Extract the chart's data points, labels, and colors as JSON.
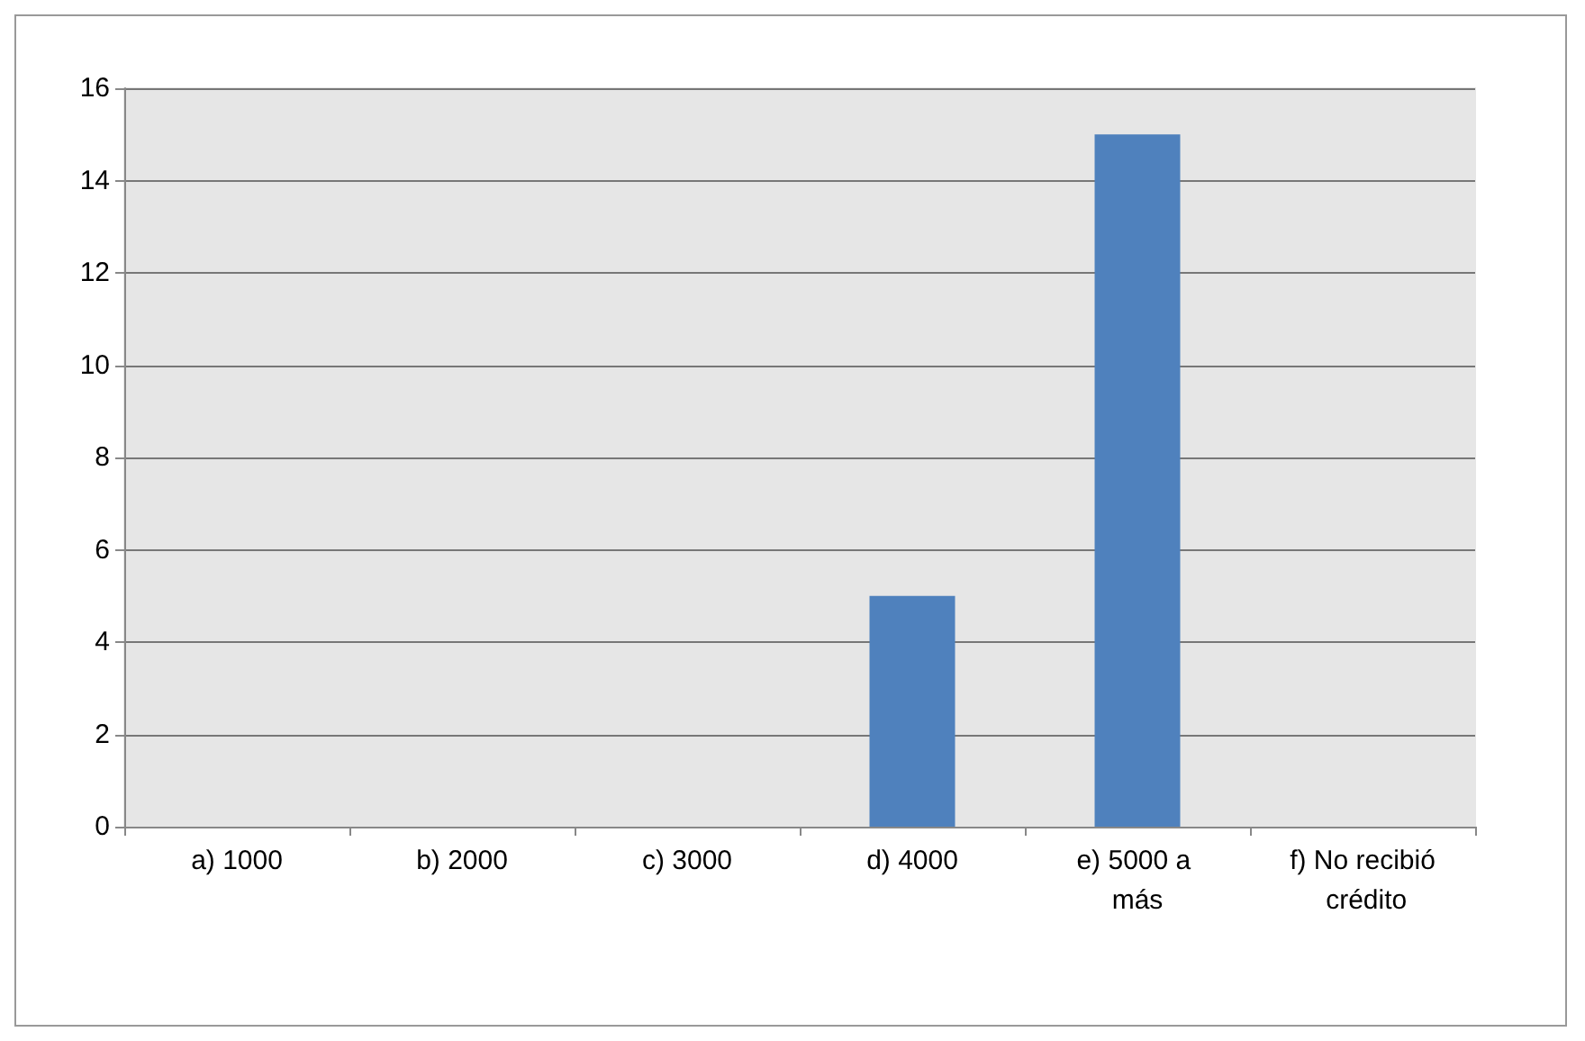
{
  "chart_data": {
    "type": "bar",
    "categories": [
      "a) 1000",
      "b) 2000",
      "c) 3000",
      "d) 4000",
      "e) 5000 a más",
      "f) No recibió crédito"
    ],
    "values": [
      0,
      0,
      0,
      5,
      15,
      0
    ],
    "color": "#4f81bd",
    "ylim": [
      0,
      16
    ],
    "yticks": [
      0,
      2,
      4,
      6,
      8,
      10,
      12,
      14,
      16
    ],
    "grid": "y"
  }
}
